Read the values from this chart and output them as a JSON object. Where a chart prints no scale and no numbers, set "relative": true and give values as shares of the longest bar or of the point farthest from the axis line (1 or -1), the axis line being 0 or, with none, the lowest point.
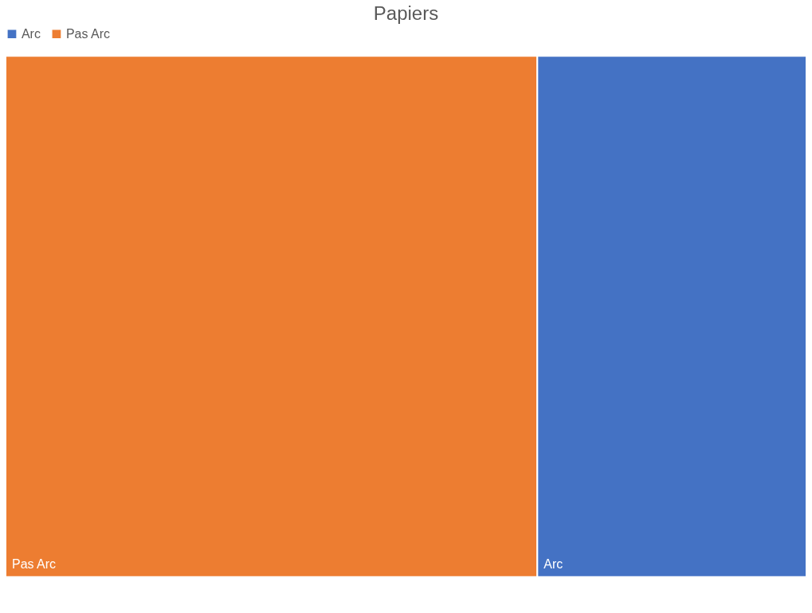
{
  "chart_data": {
    "type": "bar",
    "title": "Papiers",
    "orientation": "horizontal",
    "stacked": true,
    "relative": true,
    "legend": "top",
    "categories": [
      null
    ],
    "series": [
      {
        "name": "Pas Arc",
        "color": "#ed7d31",
        "values": [
          0.664
        ]
      },
      {
        "name": "Arc",
        "color": "#4472c4",
        "values": [
          0.336
        ]
      }
    ]
  }
}
